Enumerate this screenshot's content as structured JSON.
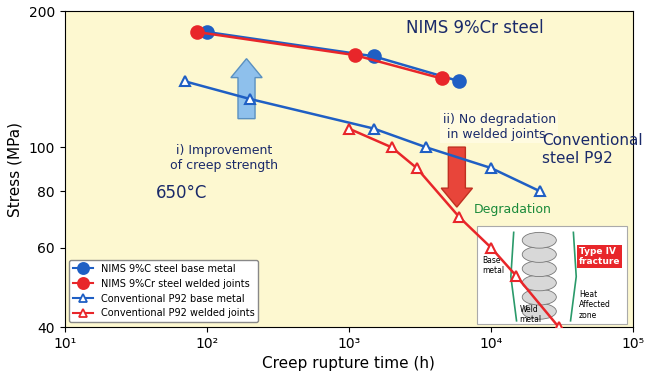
{
  "chart_data": {
    "type": "line",
    "x_label": "Creep rupture time (h)",
    "y_label": "Stress (MPa)",
    "log": true,
    "grid": false,
    "legend": "lower left",
    "xlim": [
      10,
      100000
    ],
    "ylim": [
      40,
      200
    ],
    "xticks": [
      {
        "value": 10,
        "label": "10¹"
      },
      {
        "value": 100,
        "label": "10²"
      },
      {
        "value": 1000,
        "label": "10³"
      },
      {
        "value": 10000,
        "label": "10⁴"
      },
      {
        "value": 100000,
        "label": "10⁵"
      }
    ],
    "yticks": [
      40,
      60,
      80,
      100,
      200
    ],
    "series": [
      {
        "name": "NIMS 9%C steel base metal",
        "color": "#1f5fc4",
        "marker": "filled_circle",
        "line_style": "solid",
        "x": [
          100,
          1500,
          6000
        ],
        "values": [
          180,
          159,
          140
        ]
      },
      {
        "name": "NIMS 9%Cr steel welded joints",
        "color": "#e8262a",
        "marker": "filled_circle",
        "line_style": "solid",
        "x": [
          85,
          1100,
          4500
        ],
        "values": [
          180,
          160,
          142
        ]
      },
      {
        "name": "Conventional P92 base metal",
        "color": "#1f5fc4",
        "marker": "open_triangle",
        "line_style": "solid",
        "x": [
          70,
          200,
          1500,
          3500,
          10000,
          22000
        ],
        "values": [
          140,
          128,
          110,
          100,
          90,
          80
        ]
      },
      {
        "name": "Conventional P92 welded joints",
        "color": "#e8262a",
        "marker": "open_triangle",
        "line_style": "solid",
        "x": [
          1000,
          2000,
          3000,
          6000,
          10000,
          15000,
          30000
        ],
        "values": [
          110,
          100,
          90,
          70,
          60,
          52,
          40
        ]
      }
    ],
    "annotations": [
      "NIMS 9%Cr steel",
      "ii) No degradation\n in welded joints",
      "i) Improvement\nof creep strength",
      "650°C",
      "Conventional\nsteel P92",
      "Degradation"
    ],
    "diagram": {
      "base_metal": "Base\nmetal",
      "weld_metal": "Weld\nmetal",
      "haz": "Heat\nAffected\nzone",
      "fracture": "Type IV\nfracture"
    }
  }
}
